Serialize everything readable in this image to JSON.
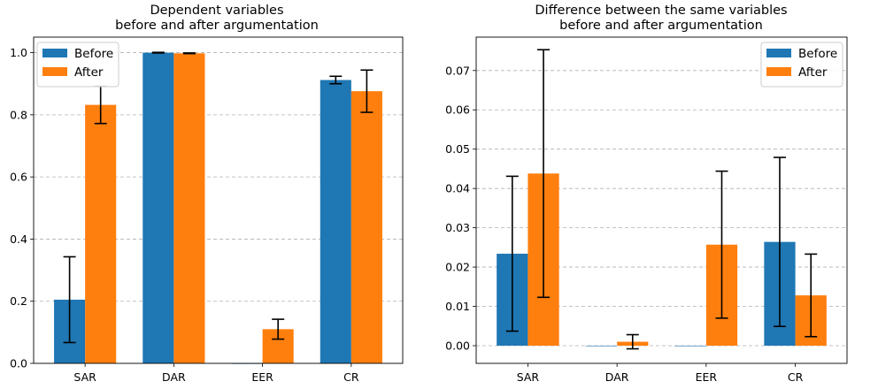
{
  "chart_data": [
    {
      "type": "bar",
      "title_line1": "Dependent variables",
      "title_line2": "before and after argumentation",
      "categories": [
        "SAR",
        "DAR",
        "EER",
        "CR"
      ],
      "series": [
        {
          "name": "Before",
          "color": "#1f77b4",
          "values": [
            0.205,
            1.0,
            0.0,
            0.912
          ],
          "err": [
            0.138,
            0.001,
            0.0,
            0.012
          ]
        },
        {
          "name": "After",
          "color": "#ff7f0e",
          "values": [
            0.832,
            0.998,
            0.11,
            0.876
          ],
          "err": [
            0.06,
            0.001,
            0.032,
            0.068
          ]
        }
      ],
      "ylim": [
        0,
        1.05
      ],
      "yticks": [
        0.0,
        0.2,
        0.4,
        0.6,
        0.8,
        1.0
      ],
      "ytick_labels": [
        "0.0",
        "0.2",
        "0.4",
        "0.6",
        "0.8",
        "1.0"
      ],
      "grid": true,
      "legend_position": "top-left"
    },
    {
      "type": "bar",
      "title_line1": "Difference between the same variables",
      "title_line2": "before and after argumentation",
      "categories": [
        "SAR",
        "DAR",
        "EER",
        "CR"
      ],
      "series": [
        {
          "name": "Before",
          "color": "#1f77b4",
          "values": [
            0.0234,
            0.0,
            0.0,
            0.0264
          ],
          "err": [
            0.0197,
            0.0,
            0.0,
            0.0215
          ]
        },
        {
          "name": "After",
          "color": "#ff7f0e",
          "values": [
            0.0438,
            0.001,
            0.0257,
            0.0128
          ],
          "err": [
            0.0315,
            0.0018,
            0.0187,
            0.0105
          ]
        }
      ],
      "ylim": [
        -0.0045,
        0.0785
      ],
      "yticks": [
        0.0,
        0.01,
        0.02,
        0.03,
        0.04,
        0.05,
        0.06,
        0.07
      ],
      "ytick_labels": [
        "0.00",
        "0.01",
        "0.02",
        "0.03",
        "0.04",
        "0.05",
        "0.06",
        "0.07"
      ],
      "grid": true,
      "legend_position": "top-right"
    }
  ]
}
